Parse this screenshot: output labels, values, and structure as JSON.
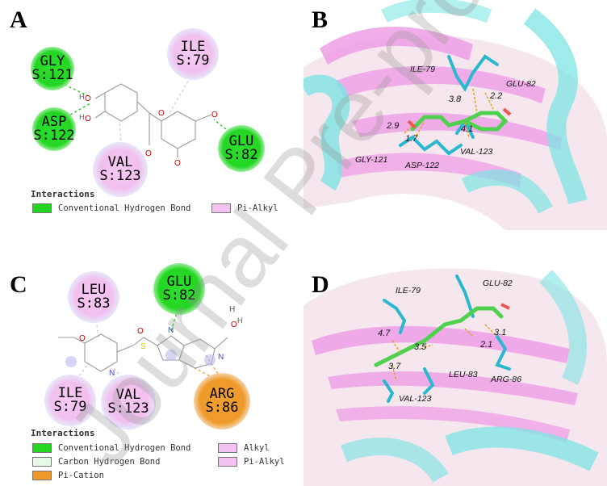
{
  "panels": {
    "a": {
      "letter": "A",
      "residues": {
        "gly121": {
          "name": "GLY",
          "id": "S:121",
          "type": "green"
        },
        "asp122": {
          "name": "ASP",
          "id": "S:122",
          "type": "green"
        },
        "ile79": {
          "name": "ILE",
          "id": "S:79",
          "type": "pink"
        },
        "val123": {
          "name": "VAL",
          "id": "S:123",
          "type": "pink"
        },
        "glu82": {
          "name": "GLU",
          "id": "S:82",
          "type": "green"
        }
      },
      "legend": {
        "title": "Interactions",
        "items": [
          {
            "label": "Conventional Hydrogen Bond",
            "color": "#22d622"
          },
          {
            "label": "Pi-Alkyl",
            "color": "#f3c2f1"
          }
        ]
      }
    },
    "b": {
      "letter": "B",
      "labels": {
        "ile79": "ILE-79",
        "glu82": "GLU-82",
        "gly121": "GLY-121",
        "asp122": "ASP-122",
        "val123": "VAL-123"
      },
      "distances": {
        "d1": "3.8",
        "d2": "2.2",
        "d3": "2.9",
        "d4": "4.1",
        "d5": "1.7"
      }
    },
    "c": {
      "letter": "C",
      "residues": {
        "leu83": {
          "name": "LEU",
          "id": "S:83",
          "type": "pink"
        },
        "glu82": {
          "name": "GLU",
          "id": "S:82",
          "type": "green"
        },
        "ile79": {
          "name": "ILE",
          "id": "S:79",
          "type": "pink"
        },
        "val123": {
          "name": "VAL",
          "id": "S:123",
          "type": "pink"
        },
        "arg86": {
          "name": "ARG",
          "id": "S:86",
          "type": "orange"
        }
      },
      "legend": {
        "title": "Interactions",
        "items": [
          {
            "label": "Conventional Hydrogen Bond",
            "color": "#22d622"
          },
          {
            "label": "Alkyl",
            "color": "#f3c2f1"
          },
          {
            "label": "Carbon Hydrogen Bond",
            "color": "#e6fae6"
          },
          {
            "label": "Pi-Alkyl",
            "color": "#f3c2f1"
          },
          {
            "label": "Pi-Cation",
            "color": "#ee9a2a"
          }
        ]
      }
    },
    "d": {
      "letter": "D",
      "labels": {
        "ile79": "ILE-79",
        "glu82": "GLU-82",
        "leu83": "LEU-83",
        "arg86": "ARG-86",
        "val123": "VAL-123"
      },
      "distances": {
        "d1": "4.7",
        "d2": "3.5",
        "d3": "3.1",
        "d4": "2.1",
        "d5": "3.7"
      }
    }
  },
  "watermark": "Journal Pre-proof"
}
